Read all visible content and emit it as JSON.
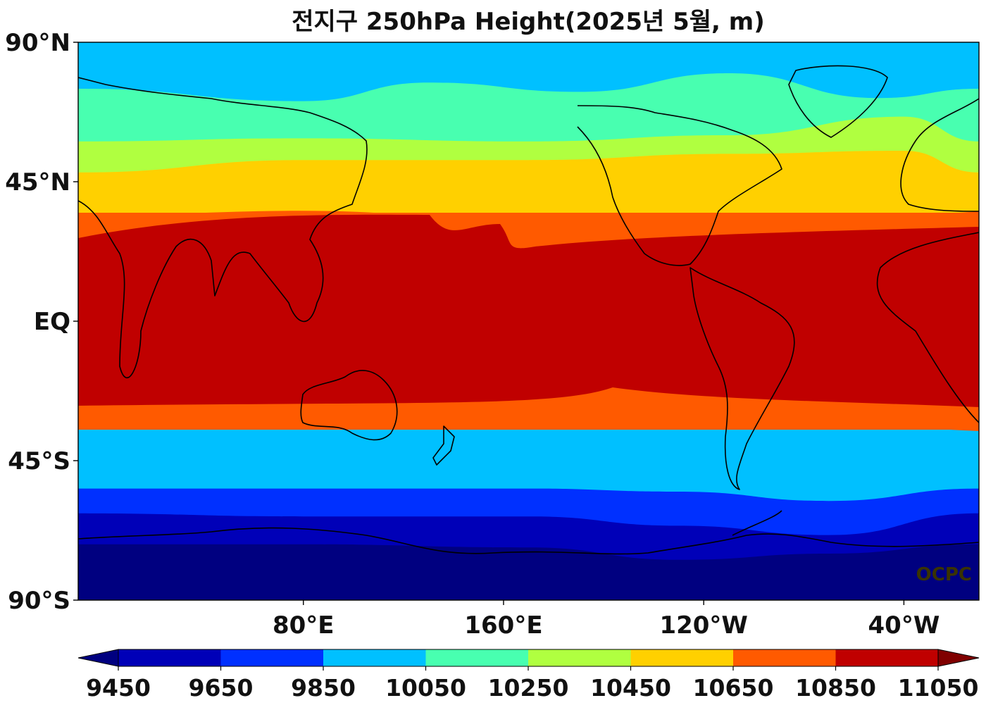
{
  "chart_data": {
    "type": "heatmap",
    "title": "전지구 250hPa Height(2025년 5월, m)",
    "watermark": "OCPC",
    "projection": "equirectangular, central longitude 170°E",
    "x_ticks": [
      "80°E",
      "160°E",
      "120°W",
      "40°W"
    ],
    "y_ticks": [
      "90°N",
      "45°N",
      "EQ",
      "45°S",
      "90°S"
    ],
    "colorbar": {
      "levels": [
        9450,
        9550,
        9650,
        9750,
        9850,
        9950,
        10050,
        10150,
        10250,
        10350,
        10450,
        10550,
        10650,
        10750,
        10850,
        10950,
        11050
      ],
      "tick_labels": [
        "9450",
        "9650",
        "9850",
        "10050",
        "10250",
        "10450",
        "10650",
        "10850",
        "11050"
      ],
      "colors": [
        "#0000b8",
        "#0030ff",
        "#00c0ff",
        "#48ffb0",
        "#b0ff40",
        "#ffd000",
        "#ff5a00",
        "#c00000"
      ],
      "under_color": "#000080",
      "over_color": "#800000",
      "extend": "both"
    },
    "series": [
      {
        "level": 9450,
        "lat_lon_profile": [
          [
            0,
            -72
          ],
          [
            90,
            -72
          ],
          [
            180,
            -73
          ],
          [
            240,
            -77
          ],
          [
            300,
            -75
          ],
          [
            360,
            -72
          ]
        ]
      },
      {
        "level": 9650,
        "lat_lon_profile": [
          [
            0,
            -62
          ],
          [
            90,
            -63
          ],
          [
            180,
            -63
          ],
          [
            240,
            -66
          ],
          [
            300,
            -69
          ],
          [
            360,
            -62
          ]
        ]
      },
      {
        "level": 9850,
        "lat_lon_profile": [
          [
            0,
            -54
          ],
          [
            90,
            -54
          ],
          [
            180,
            -54
          ],
          [
            240,
            -55
          ],
          [
            300,
            -58
          ],
          [
            360,
            -54
          ]
        ]
      },
      {
        "level": 10050,
        "lat_lon_profile": [
          [
            0,
            75
          ],
          [
            90,
            71
          ],
          [
            140,
            77
          ],
          [
            200,
            74
          ],
          [
            260,
            80
          ],
          [
            320,
            72
          ],
          [
            360,
            75
          ]
        ]
      },
      {
        "level": 10250,
        "lat_lon_profile": [
          [
            0,
            58
          ],
          [
            90,
            59
          ],
          [
            180,
            58
          ],
          [
            260,
            60
          ],
          [
            330,
            66
          ],
          [
            360,
            58
          ]
        ]
      },
      {
        "level": 10450,
        "lat_lon_profile": [
          [
            0,
            48
          ],
          [
            90,
            52
          ],
          [
            180,
            52
          ],
          [
            260,
            54
          ],
          [
            330,
            55
          ],
          [
            360,
            48
          ]
        ]
      }
    ]
  }
}
